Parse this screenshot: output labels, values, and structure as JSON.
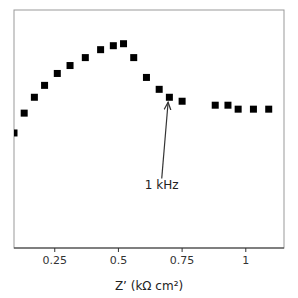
{
  "chart_data": {
    "type": "scatter",
    "x_label": "Z’ (kΩ cm²)",
    "x": [
      0.09,
      0.13,
      0.17,
      0.21,
      0.26,
      0.31,
      0.37,
      0.43,
      0.48,
      0.52,
      0.56,
      0.61,
      0.66,
      0.7,
      0.75,
      0.88,
      0.93,
      0.97,
      1.03,
      1.09
    ],
    "values": [
      0.74,
      0.79,
      0.83,
      0.86,
      0.89,
      0.91,
      0.93,
      0.95,
      0.96,
      0.965,
      0.93,
      0.88,
      0.85,
      0.83,
      0.82,
      0.81,
      0.81,
      0.8,
      0.8,
      0.8
    ],
    "color": "black",
    "marker": "square",
    "xlim": [
      0.09,
      1.15
    ],
    "ylim": [
      0.45,
      1.05
    ],
    "xticks": [
      0.25,
      0.5,
      0.75,
      1
    ],
    "tick_labels": "x",
    "grid": false,
    "annotations": [
      {
        "text": "1 kHz",
        "x": 0.67,
        "y": 0.62,
        "xy": [
          0.695,
          0.83
        ]
      }
    ]
  }
}
